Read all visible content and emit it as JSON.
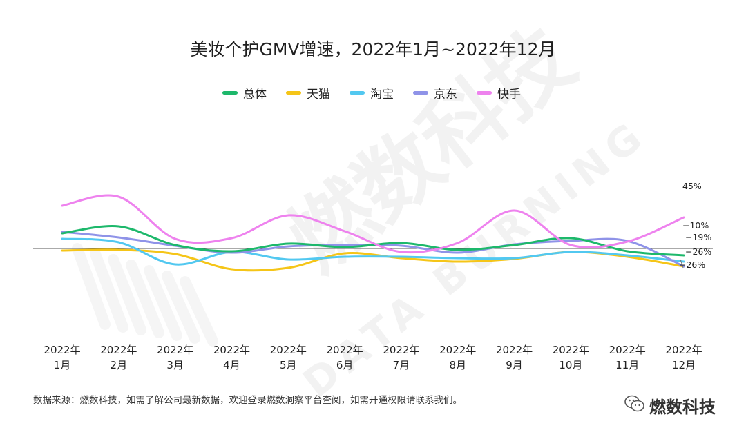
{
  "chart_data": {
    "type": "line",
    "title": "美妆个护GMV增速，2022年1月~2022年12月",
    "categories": [
      [
        "2022年",
        "1月"
      ],
      [
        "2022年",
        "2月"
      ],
      [
        "2022年",
        "3月"
      ],
      [
        "2022年",
        "4月"
      ],
      [
        "2022年",
        "5月"
      ],
      [
        "2022年",
        "6月"
      ],
      [
        "2022年",
        "7月"
      ],
      [
        "2022年",
        "8月"
      ],
      [
        "2022年",
        "9月"
      ],
      [
        "2022年",
        "10月"
      ],
      [
        "2022年",
        "11月"
      ],
      [
        "2022年",
        "12月"
      ]
    ],
    "ylim": [
      -60,
      130
    ],
    "zero_line": true,
    "grid": false,
    "legend_position": "top",
    "series": [
      {
        "name": "总体",
        "color": "#1db86b",
        "values": [
          22,
          32,
          5,
          -4,
          7,
          2,
          8,
          -2,
          5,
          15,
          -4,
          -10
        ],
        "end_label": "−10%"
      },
      {
        "name": "天猫",
        "color": "#f5c518",
        "values": [
          -3,
          -2,
          -8,
          -30,
          -28,
          -7,
          -14,
          -19,
          -15,
          -5,
          -12,
          -26
        ],
        "end_label": "−26%"
      },
      {
        "name": "淘宝",
        "color": "#52c8f0",
        "values": [
          14,
          9,
          -23,
          -5,
          -16,
          -12,
          -12,
          -14,
          -14,
          -5,
          -10,
          -19
        ],
        "end_label": "−19%"
      },
      {
        "name": "京东",
        "color": "#8f93e8",
        "values": [
          24,
          16,
          4,
          -6,
          3,
          5,
          4,
          -6,
          6,
          11,
          11,
          -26
        ],
        "end_label": "−26%"
      },
      {
        "name": "快手",
        "color": "#ee82ee",
        "values": [
          62,
          75,
          14,
          15,
          48,
          25,
          -5,
          8,
          55,
          5,
          10,
          45
        ],
        "end_label": "45%"
      }
    ]
  },
  "footer": {
    "source": "数据来源：燃数科技，如需了解公司最新数据，欢迎登录燃数洞察平台查阅，如需开通权限请联系我们。"
  },
  "brand": {
    "name": "燃数科技",
    "icon": "wechat-icon"
  },
  "watermark": {
    "text": "燃数科技",
    "subtext": "DATA BURNING"
  }
}
